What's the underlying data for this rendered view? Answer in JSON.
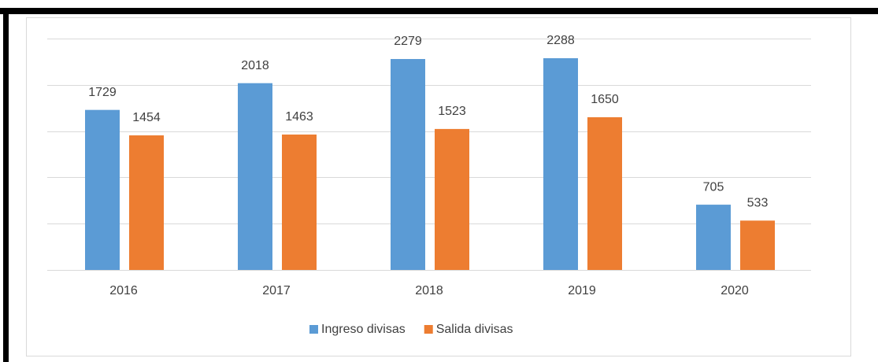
{
  "chart_data": {
    "type": "bar",
    "categories": [
      "2016",
      "2017",
      "2018",
      "2019",
      "2020"
    ],
    "series": [
      {
        "name": "Ingreso divisas",
        "color": "#5b9bd5",
        "values": [
          1729,
          2018,
          2279,
          2288,
          705
        ]
      },
      {
        "name": "Salida divisas",
        "color": "#ed7d31",
        "values": [
          1454,
          1463,
          1523,
          1650,
          533
        ]
      }
    ],
    "ylim": [
      0,
      2500
    ],
    "yticks": [
      0,
      500,
      1000,
      1500,
      2000,
      2500
    ],
    "grid": true,
    "legend": "bottom"
  }
}
